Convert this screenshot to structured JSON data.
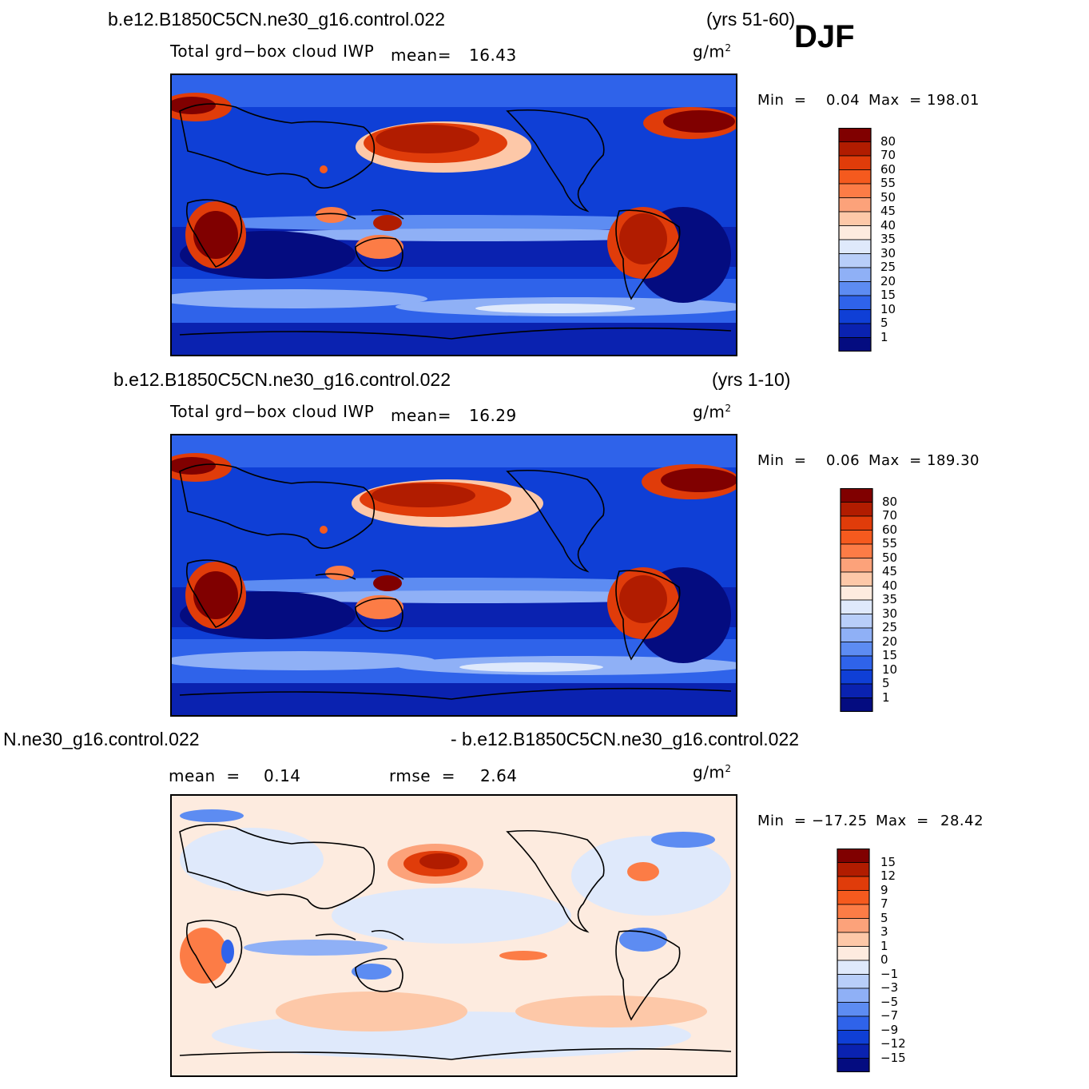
{
  "season": "DJF",
  "panels": [
    {
      "case": "b.e12.B1850C5CN.ne30_g16.control.022",
      "years": "(yrs 51-60)",
      "field": "Total grd−box cloud IWP",
      "mean_label": "mean=",
      "mean_value": "16.43",
      "units_base": "g/m",
      "units_exp": "2",
      "min_label": "Min  =",
      "min_value": "0.04",
      "max_label": "Max  =",
      "max_value": "198.01",
      "levels": [
        "80",
        "70",
        "60",
        "55",
        "50",
        "45",
        "40",
        "35",
        "30",
        "25",
        "20",
        "15",
        "10",
        "5",
        "1"
      ]
    },
    {
      "case": "b.e12.B1850C5CN.ne30_g16.control.022",
      "years": "(yrs 1-10)",
      "field": "Total grd−box cloud IWP",
      "mean_label": "mean=",
      "mean_value": "16.29",
      "units_base": "g/m",
      "units_exp": "2",
      "min_label": "Min  =",
      "min_value": "0.06",
      "max_label": "Max  =",
      "max_value": "189.30",
      "levels": [
        "80",
        "70",
        "60",
        "55",
        "50",
        "45",
        "40",
        "35",
        "30",
        "25",
        "20",
        "15",
        "10",
        "5",
        "1"
      ]
    },
    {
      "case_left": "N.ne30_g16.control.022",
      "case_right": "- b.e12.B1850C5CN.ne30_g16.control.022",
      "mean_label": "mean  =",
      "mean_value": "0.14",
      "rmse_label": "rmse  =",
      "rmse_value": "2.64",
      "units_base": "g/m",
      "units_exp": "2",
      "min_label": "Min  =",
      "min_value": "−17.25",
      "max_label": "Max  =",
      "max_value": "28.42",
      "levels": [
        "15",
        "12",
        "9",
        "7",
        "5",
        "3",
        "1",
        "0",
        "−1",
        "−3",
        "−5",
        "−7",
        "−9",
        "−12",
        "−15"
      ]
    }
  ],
  "colors": {
    "abs_scale": [
      "#800000",
      "#b11c00",
      "#e03c0a",
      "#f55a1e",
      "#fc7c46",
      "#fca27a",
      "#fdc8a8",
      "#fdebdf",
      "#dfe9fb",
      "#b8cef9",
      "#8fb0f6",
      "#5d8cf2",
      "#2f63ea",
      "#0f3fd6",
      "#0a22b0",
      "#040c80"
    ],
    "diff_scale": [
      "#800000",
      "#b11c00",
      "#e03c0a",
      "#f55a1e",
      "#fc7c46",
      "#fca27a",
      "#fdc8a8",
      "#fdebdf",
      "#dfe9fb",
      "#b8cef9",
      "#8fb0f6",
      "#5d8cf2",
      "#2f63ea",
      "#0f3fd6",
      "#0a22b0",
      "#040c80"
    ]
  }
}
